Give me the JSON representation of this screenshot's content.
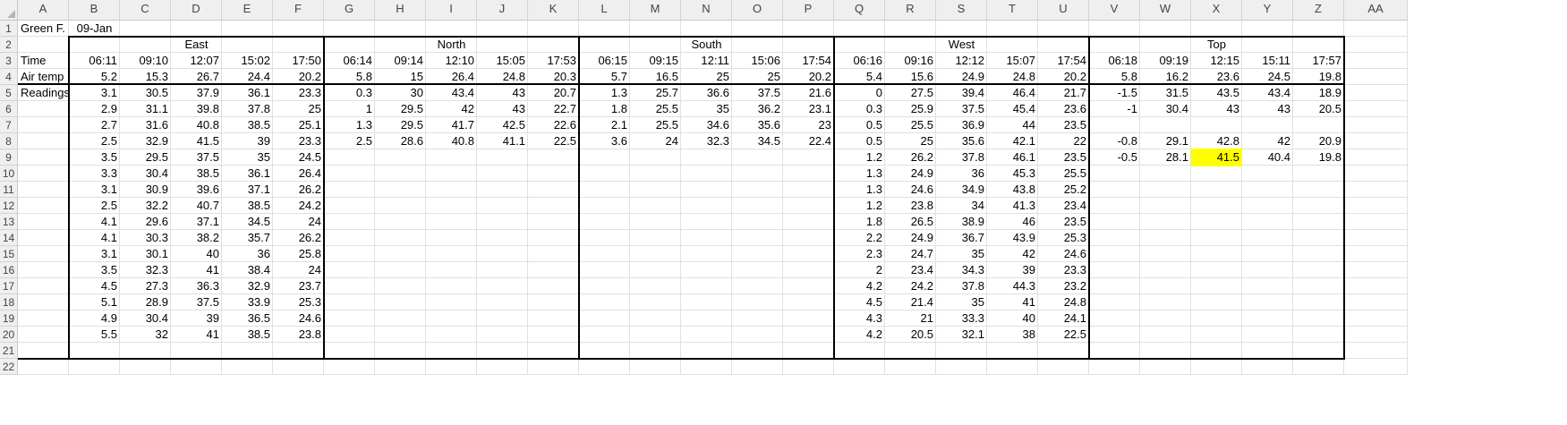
{
  "columns": [
    "A",
    "B",
    "C",
    "D",
    "E",
    "F",
    "G",
    "H",
    "I",
    "J",
    "K",
    "L",
    "M",
    "N",
    "O",
    "P",
    "Q",
    "R",
    "S",
    "T",
    "U",
    "V",
    "W",
    "X",
    "Y",
    "Z",
    "AA"
  ],
  "rows": [
    "1",
    "2",
    "3",
    "4",
    "5",
    "6",
    "7",
    "8",
    "9",
    "10",
    "11",
    "12",
    "13",
    "14",
    "15",
    "16",
    "17",
    "18",
    "19",
    "20",
    "21",
    "22"
  ],
  "highlight_color": "#ffff00",
  "header": {
    "a1": "Green F.",
    "b1": "09-Jan",
    "a3": "Time",
    "a4": "Air temp",
    "a5": "Readings"
  },
  "sections": [
    {
      "name": "East",
      "times": [
        "06:11",
        "09:10",
        "12:07",
        "15:02",
        "17:50"
      ],
      "air_temp": [
        "5.2",
        "15.3",
        "26.7",
        "24.4",
        "20.2"
      ],
      "readings": [
        [
          "3.1",
          "30.5",
          "37.9",
          "36.1",
          "23.3"
        ],
        [
          "2.9",
          "31.1",
          "39.8",
          "37.8",
          "25"
        ],
        [
          "2.7",
          "31.6",
          "40.8",
          "38.5",
          "25.1"
        ],
        [
          "2.5",
          "32.9",
          "41.5",
          "39",
          "23.3"
        ],
        [
          "3.5",
          "29.5",
          "37.5",
          "35",
          "24.5"
        ],
        [
          "3.3",
          "30.4",
          "38.5",
          "36.1",
          "26.4"
        ],
        [
          "3.1",
          "30.9",
          "39.6",
          "37.1",
          "26.2"
        ],
        [
          "2.5",
          "32.2",
          "40.7",
          "38.5",
          "24.2"
        ],
        [
          "4.1",
          "29.6",
          "37.1",
          "34.5",
          "24"
        ],
        [
          "4.1",
          "30.3",
          "38.2",
          "35.7",
          "26.2"
        ],
        [
          "3.1",
          "30.1",
          "40",
          "36",
          "25.8"
        ],
        [
          "3.5",
          "32.3",
          "41",
          "38.4",
          "24"
        ],
        [
          "4.5",
          "27.3",
          "36.3",
          "32.9",
          "23.7"
        ],
        [
          "5.1",
          "28.9",
          "37.5",
          "33.9",
          "25.3"
        ],
        [
          "4.9",
          "30.4",
          "39",
          "36.5",
          "24.6"
        ],
        [
          "5.5",
          "32",
          "41",
          "38.5",
          "23.8"
        ]
      ]
    },
    {
      "name": "North",
      "times": [
        "06:14",
        "09:14",
        "12:10",
        "15:05",
        "17:53"
      ],
      "air_temp": [
        "5.8",
        "15",
        "26.4",
        "24.8",
        "20.3"
      ],
      "readings": [
        [
          "0.3",
          "30",
          "43.4",
          "43",
          "20.7"
        ],
        [
          "1",
          "29.5",
          "42",
          "43",
          "22.7"
        ],
        [
          "1.3",
          "29.5",
          "41.7",
          "42.5",
          "22.6"
        ],
        [
          "2.5",
          "28.6",
          "40.8",
          "41.1",
          "22.5"
        ]
      ]
    },
    {
      "name": "South",
      "times": [
        "06:15",
        "09:15",
        "12:11",
        "15:06",
        "17:54"
      ],
      "air_temp": [
        "5.7",
        "16.5",
        "25",
        "25",
        "20.2"
      ],
      "readings": [
        [
          "1.3",
          "25.7",
          "36.6",
          "37.5",
          "21.6"
        ],
        [
          "1.8",
          "25.5",
          "35",
          "36.2",
          "23.1"
        ],
        [
          "2.1",
          "25.5",
          "34.6",
          "35.6",
          "23"
        ],
        [
          "3.6",
          "24",
          "32.3",
          "34.5",
          "22.4"
        ]
      ]
    },
    {
      "name": "West",
      "times": [
        "06:16",
        "09:16",
        "12:12",
        "15:07",
        "17:54"
      ],
      "air_temp": [
        "5.4",
        "15.6",
        "24.9",
        "24.8",
        "20.2"
      ],
      "readings": [
        [
          "0",
          "27.5",
          "39.4",
          "46.4",
          "21.7"
        ],
        [
          "0.3",
          "25.9",
          "37.5",
          "45.4",
          "23.6"
        ],
        [
          "0.5",
          "25.5",
          "36.9",
          "44",
          "23.5"
        ],
        [
          "0.5",
          "25",
          "35.6",
          "42.1",
          "22"
        ],
        [
          "1.2",
          "26.2",
          "37.8",
          "46.1",
          "23.5"
        ],
        [
          "1.3",
          "24.9",
          "36",
          "45.3",
          "25.5"
        ],
        [
          "1.3",
          "24.6",
          "34.9",
          "43.8",
          "25.2"
        ],
        [
          "1.2",
          "23.8",
          "34",
          "41.3",
          "23.4"
        ],
        [
          "1.8",
          "26.5",
          "38.9",
          "46",
          "23.5"
        ],
        [
          "2.2",
          "24.9",
          "36.7",
          "43.9",
          "25.3"
        ],
        [
          "2.3",
          "24.7",
          "35",
          "42",
          "24.6"
        ],
        [
          "2",
          "23.4",
          "34.3",
          "39",
          "23.3"
        ],
        [
          "4.2",
          "24.2",
          "37.8",
          "44.3",
          "23.2"
        ],
        [
          "4.5",
          "21.4",
          "35",
          "41",
          "24.8"
        ],
        [
          "4.3",
          "21",
          "33.3",
          "40",
          "24.1"
        ],
        [
          "4.2",
          "20.5",
          "32.1",
          "38",
          "22.5"
        ]
      ]
    },
    {
      "name": "Top",
      "times": [
        "06:18",
        "09:19",
        "12:15",
        "15:11",
        "17:57"
      ],
      "air_temp": [
        "5.8",
        "16.2",
        "23.6",
        "24.5",
        "19.8"
      ],
      "readings": [
        [
          "-1.5",
          "31.5",
          "43.5",
          "43.4",
          "18.9"
        ],
        [
          "-1",
          "30.4",
          "43",
          "43",
          "20.5"
        ],
        [
          "",
          "",
          "",
          "",
          ""
        ],
        [
          "-0.8",
          "29.1",
          "42.8",
          "42",
          "20.9"
        ],
        [
          "-0.5",
          "28.1",
          "41.5",
          "40.4",
          "19.8"
        ]
      ],
      "highlighted": [
        [
          4,
          2
        ]
      ]
    }
  ]
}
